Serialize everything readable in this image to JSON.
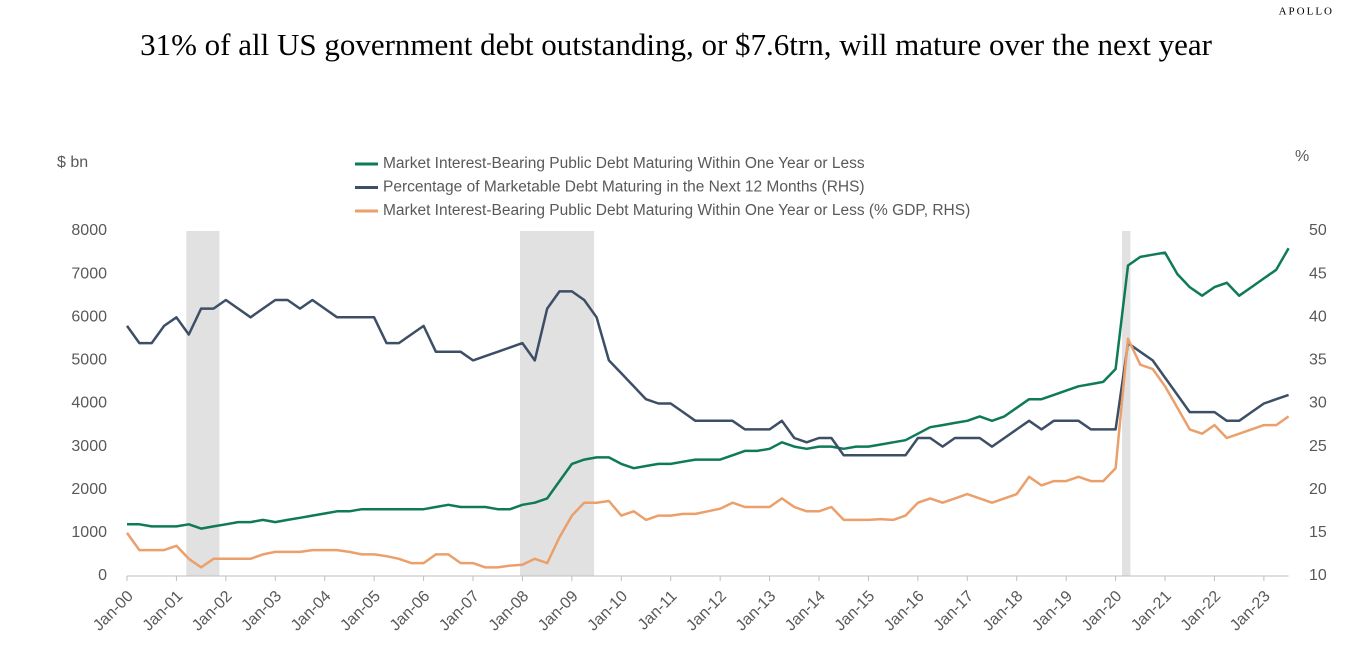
{
  "brand": "APOLLO",
  "chart_data": {
    "type": "line",
    "title": "31% of all US government debt outstanding, or $7.6trn, will mature over the next year",
    "ylabel": "$ bn",
    "y2label": "%",
    "x": [
      2000,
      2000.25,
      2000.5,
      2000.75,
      2001,
      2001.25,
      2001.5,
      2001.75,
      2002,
      2002.25,
      2002.5,
      2002.75,
      2003,
      2003.25,
      2003.5,
      2003.75,
      2004,
      2004.25,
      2004.5,
      2004.75,
      2005,
      2005.25,
      2005.5,
      2005.75,
      2006,
      2006.25,
      2006.5,
      2006.75,
      2007,
      2007.25,
      2007.5,
      2007.75,
      2008,
      2008.25,
      2008.5,
      2008.75,
      2009,
      2009.25,
      2009.5,
      2009.75,
      2010,
      2010.25,
      2010.5,
      2010.75,
      2011,
      2011.25,
      2011.5,
      2011.75,
      2012,
      2012.25,
      2012.5,
      2012.75,
      2013,
      2013.25,
      2013.5,
      2013.75,
      2014,
      2014.25,
      2014.5,
      2014.75,
      2015,
      2015.25,
      2015.5,
      2015.75,
      2016,
      2016.25,
      2016.5,
      2016.75,
      2017,
      2017.25,
      2017.5,
      2017.75,
      2018,
      2018.25,
      2018.5,
      2018.75,
      2019,
      2019.25,
      2019.5,
      2019.75,
      2020,
      2020.25,
      2020.5,
      2020.75,
      2021,
      2021.25,
      2021.5,
      2021.75,
      2022,
      2022.25,
      2022.5,
      2022.75,
      2023,
      2023.25,
      2023.5
    ],
    "series": [
      {
        "name": "Market Interest-Bearing Public Debt Maturing Within One Year or Less",
        "color": "#0e7a5a",
        "axis": "y",
        "values": [
          1200,
          1200,
          1150,
          1150,
          1150,
          1200,
          1100,
          1150,
          1200,
          1250,
          1250,
          1300,
          1250,
          1300,
          1350,
          1400,
          1450,
          1500,
          1500,
          1550,
          1550,
          1550,
          1550,
          1550,
          1550,
          1600,
          1650,
          1600,
          1600,
          1600,
          1550,
          1550,
          1650,
          1700,
          1800,
          2200,
          2600,
          2700,
          2750,
          2750,
          2600,
          2500,
          2550,
          2600,
          2600,
          2650,
          2700,
          2700,
          2700,
          2800,
          2900,
          2900,
          2950,
          3100,
          3000,
          2950,
          3000,
          3000,
          2950,
          3000,
          3000,
          3050,
          3100,
          3150,
          3300,
          3450,
          3500,
          3550,
          3600,
          3700,
          3600,
          3700,
          3900,
          4100,
          4100,
          4200,
          4300,
          4400,
          4450,
          4500,
          4800,
          7200,
          7400,
          7450,
          7500,
          7000,
          6700,
          6500,
          6700,
          6800,
          6500,
          6700,
          6900,
          7100,
          7600
        ]
      },
      {
        "name": "Percentage of Marketable Debt Maturing in the Next 12 Months (RHS)",
        "color": "#3c4f66",
        "axis": "y2",
        "values": [
          39,
          37,
          37,
          39,
          40,
          38,
          41,
          41,
          42,
          41,
          40,
          41,
          42,
          42,
          41,
          42,
          41,
          40,
          40,
          40,
          40,
          37,
          37,
          38,
          39,
          36,
          36,
          36,
          35,
          35.5,
          36,
          36.5,
          37,
          35,
          41,
          43,
          43,
          42,
          40,
          35,
          33.5,
          32,
          30.5,
          30,
          30,
          29,
          28,
          28,
          28,
          28,
          27,
          27,
          27,
          28,
          26,
          25.5,
          26,
          26,
          24,
          24,
          24,
          24,
          24,
          24,
          26,
          26,
          25,
          26,
          26,
          26,
          25,
          26,
          27,
          28,
          27,
          28,
          28,
          28,
          27,
          27,
          27,
          37,
          36,
          35,
          33,
          31,
          29,
          29,
          29,
          28,
          28,
          29,
          30,
          30.5,
          31
        ]
      },
      {
        "name": "Market Interest-Bearing Public Debt Maturing Within One Year or Less (% GDP, RHS)",
        "color": "#eba06c",
        "axis": "y2",
        "values": [
          15,
          13,
          13,
          13,
          13.5,
          12,
          11,
          12,
          12,
          12,
          12,
          12.5,
          12.8,
          12.8,
          12.8,
          13,
          13,
          13,
          12.8,
          12.5,
          12.5,
          12.3,
          12,
          11.5,
          11.5,
          12.5,
          12.5,
          11.5,
          11.5,
          11,
          11,
          11.2,
          11.3,
          12,
          11.5,
          14.5,
          17,
          18.5,
          18.5,
          18.7,
          17,
          17.5,
          16.5,
          17,
          17,
          17.2,
          17.2,
          17.5,
          17.8,
          18.5,
          18,
          18,
          18,
          19,
          18,
          17.5,
          17.5,
          18,
          16.5,
          16.5,
          16.5,
          16.6,
          16.5,
          17,
          18.5,
          19,
          18.5,
          19,
          19.5,
          19,
          18.5,
          19,
          19.5,
          21.5,
          20.5,
          21,
          21,
          21.5,
          21,
          21,
          22.5,
          37.5,
          34.5,
          34,
          32,
          29.5,
          27,
          26.5,
          27.5,
          26,
          26.5,
          27,
          27.5,
          27.5,
          28.5
        ]
      }
    ],
    "recessions": [
      [
        2001.2,
        2001.87
      ],
      [
        2007.95,
        2009.45
      ],
      [
        2020.13,
        2020.3
      ]
    ],
    "recession_color": "#e1e1e1",
    "xlim": [
      2000,
      2023.5
    ],
    "xticks": [
      {
        "value": 2000,
        "label": "Jan-00"
      },
      {
        "value": 2001,
        "label": "Jan-01"
      },
      {
        "value": 2002,
        "label": "Jan-02"
      },
      {
        "value": 2003,
        "label": "Jan-03"
      },
      {
        "value": 2004,
        "label": "Jan-04"
      },
      {
        "value": 2005,
        "label": "Jan-05"
      },
      {
        "value": 2006,
        "label": "Jan-06"
      },
      {
        "value": 2007,
        "label": "Jan-07"
      },
      {
        "value": 2008,
        "label": "Jan-08"
      },
      {
        "value": 2009,
        "label": "Jan-09"
      },
      {
        "value": 2010,
        "label": "Jan-10"
      },
      {
        "value": 2011,
        "label": "Jan-11"
      },
      {
        "value": 2012,
        "label": "Jan-12"
      },
      {
        "value": 2013,
        "label": "Jan-13"
      },
      {
        "value": 2014,
        "label": "Jan-14"
      },
      {
        "value": 2015,
        "label": "Jan-15"
      },
      {
        "value": 2016,
        "label": "Jan-16"
      },
      {
        "value": 2017,
        "label": "Jan-17"
      },
      {
        "value": 2018,
        "label": "Jan-18"
      },
      {
        "value": 2019,
        "label": "Jan-19"
      },
      {
        "value": 2020,
        "label": "Jan-20"
      },
      {
        "value": 2021,
        "label": "Jan-21"
      },
      {
        "value": 2022,
        "label": "Jan-22"
      },
      {
        "value": 2023,
        "label": "Jan-23"
      }
    ],
    "ylim": [
      0,
      8000
    ],
    "yticks": [
      0,
      1000,
      2000,
      3000,
      4000,
      5000,
      6000,
      7000,
      8000
    ],
    "y2lim": [
      10,
      50
    ],
    "y2ticks": [
      10,
      15,
      20,
      25,
      30,
      35,
      40,
      45,
      50
    ],
    "grid": false
  }
}
